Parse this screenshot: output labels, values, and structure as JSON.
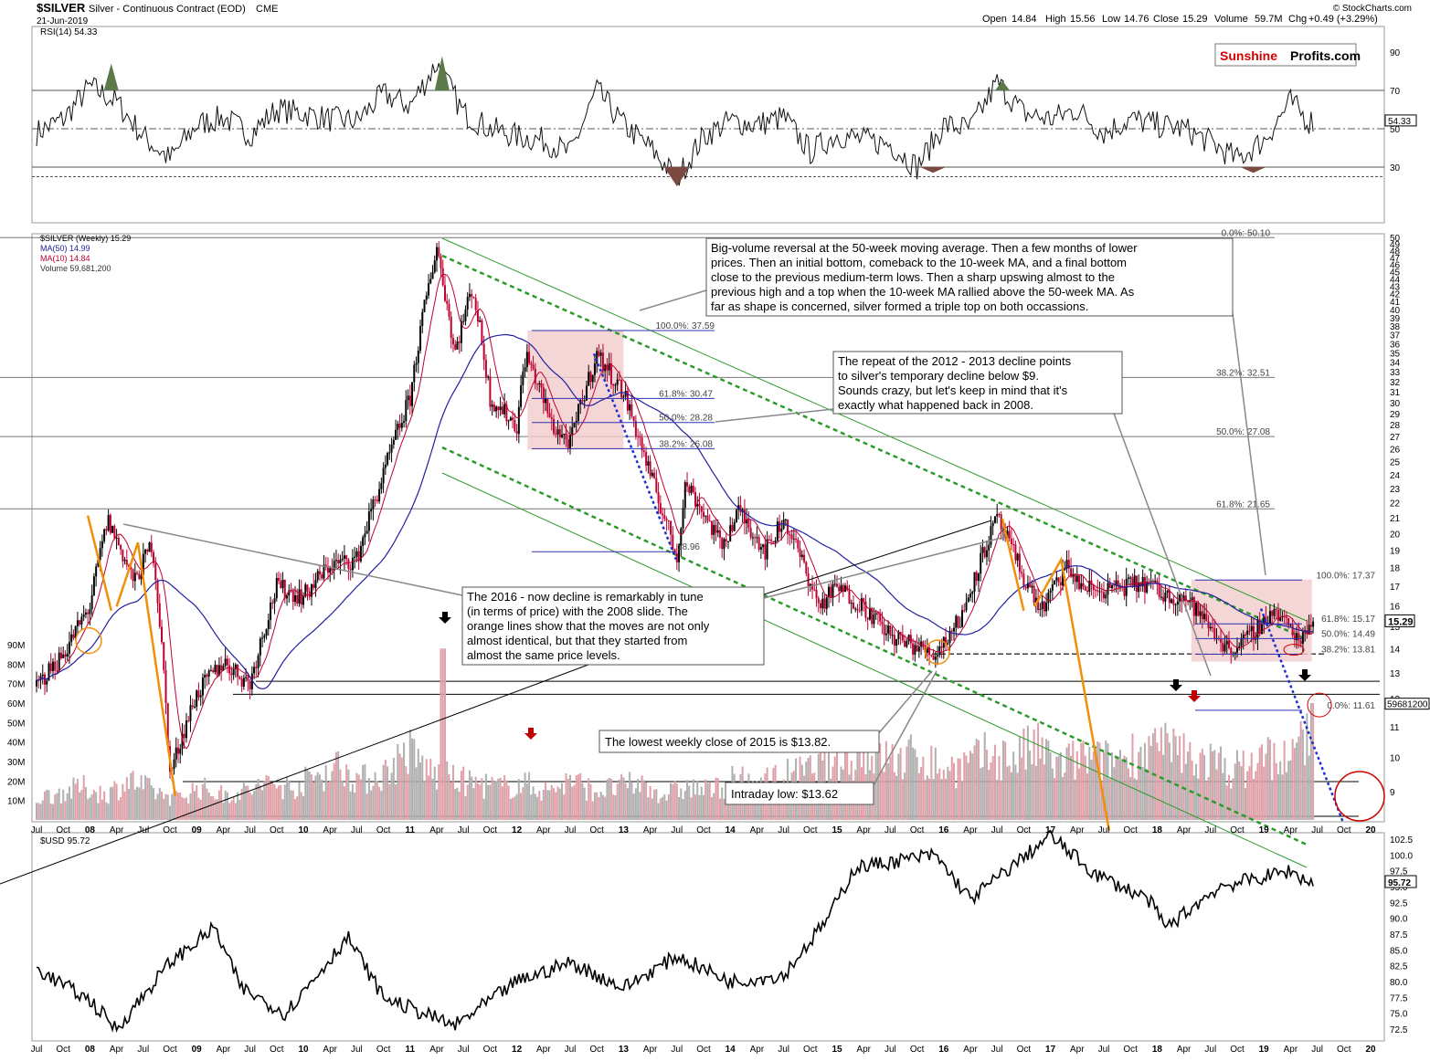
{
  "header": {
    "symbol": "$SILVER",
    "description": "Silver - Continuous Contract (EOD)",
    "exchange": "CME",
    "date": "21-Jun-2019",
    "open_label": "Open",
    "open": "14.84",
    "high_label": "High",
    "high": "15.56",
    "low_label": "Low",
    "low": "14.76",
    "close_label": "Close",
    "close": "15.29",
    "volume_label": "Volume",
    "volume": "59.7M",
    "chg_label": "Chg",
    "chg": "+0.49 (+3.29%)",
    "source": "© StockCharts.com",
    "brand_red": "Sunshine",
    "brand_black": "Profits.com",
    "brand_color": "#d60000"
  },
  "chart_data": [
    {
      "type": "line",
      "panel": "rsi",
      "title": "RSI(14) 54.33",
      "ylim": [
        10,
        100
      ],
      "yticks": [
        "90",
        "70",
        "50",
        "30"
      ],
      "reference_lines": [
        70,
        50,
        30,
        25
      ],
      "last_value": "54.33",
      "x": [
        "Jul 2007",
        "Oct 2007",
        "Jan 2008",
        "Apr 2008",
        "Jul 2008",
        "Oct 2008",
        "Jan 2009",
        "Apr 2009",
        "Jul 2009",
        "Oct 2009",
        "Jan 2010",
        "Apr 2010",
        "Jul 2010",
        "Oct 2010",
        "Jan 2011",
        "Apr 2011",
        "Jul 2011",
        "Oct 2011",
        "Jan 2012",
        "Apr 2012",
        "Jul 2012",
        "Oct 2012",
        "Jan 2013",
        "Apr 2013",
        "Jul 2013",
        "Oct 2013",
        "Jan 2014",
        "Apr 2014",
        "Jul 2014",
        "Oct 2014",
        "Jan 2015",
        "Apr 2015",
        "Jul 2015",
        "Oct 2015",
        "Jan 2016",
        "Apr 2016",
        "Jul 2016",
        "Oct 2016",
        "Jan 2017",
        "Apr 2017",
        "Jul 2017",
        "Oct 2017",
        "Jan 2018",
        "Apr 2018",
        "Jul 2018",
        "Oct 2018",
        "Jan 2019",
        "Apr 2019",
        "Jun 2019"
      ],
      "values": [
        48,
        55,
        72,
        64,
        46,
        34,
        52,
        56,
        47,
        60,
        58,
        55,
        54,
        68,
        62,
        84,
        58,
        50,
        46,
        44,
        37,
        70,
        52,
        40,
        24,
        46,
        54,
        52,
        56,
        38,
        47,
        44,
        42,
        30,
        52,
        50,
        74,
        58,
        55,
        60,
        48,
        55,
        52,
        50,
        43,
        34,
        44,
        64,
        54
      ]
    },
    {
      "type": "candlestick",
      "panel": "price",
      "title": "$SILVER (Weekly) 15.29",
      "legend": [
        "$SILVER (Weekly) 15.29",
        "MA(50) 14.99",
        "MA(10) 14.84",
        "Volume 59,681,200"
      ],
      "ylim": [
        8,
        50
      ],
      "yscale": "log",
      "yticks": [
        "9",
        "10",
        "11",
        "12",
        "13",
        "14",
        "15",
        "16",
        "17",
        "18",
        "19",
        "20",
        "21",
        "22",
        "23",
        "24",
        "25",
        "26",
        "27",
        "28",
        "29",
        "30",
        "31",
        "32",
        "33",
        "34",
        "35",
        "36",
        "37",
        "38",
        "39",
        "40",
        "41",
        "42",
        "43",
        "44",
        "45",
        "46",
        "47",
        "48",
        "49",
        "50"
      ],
      "last_close": "15.29",
      "x": [
        "Jul 2007",
        "Oct 2007",
        "Jan 2008",
        "Mar 2008",
        "Jun 2008",
        "Aug 2008",
        "Oct 2008",
        "Jan 2009",
        "Apr 2009",
        "Jul 2009",
        "Oct 2009",
        "Jan 2010",
        "Apr 2010",
        "Jul 2010",
        "Oct 2010",
        "Jan 2011",
        "Apr 2011",
        "Jun 2011",
        "Aug 2011",
        "Oct 2011",
        "Jan 2012",
        "Feb 2012",
        "May 2012",
        "Jul 2012",
        "Oct 2012",
        "Jan 2013",
        "Apr 2013",
        "Jul 2013",
        "Aug 2013",
        "Dec 2013",
        "Feb 2014",
        "May 2014",
        "Jul 2014",
        "Nov 2014",
        "Jan 2015",
        "Apr 2015",
        "Jul 2015",
        "Dec 2015",
        "Mar 2016",
        "Jul 2016",
        "Oct 2016",
        "Dec 2016",
        "Mar 2017",
        "Apr 2017",
        "Jun 2017",
        "Sep 2017",
        "Dec 2017",
        "Feb 2018",
        "Apr 2018",
        "Jul 2018",
        "Sep 2018",
        "Nov 2018",
        "Feb 2019",
        "Apr 2019",
        "May 2019",
        "Jun 2019"
      ],
      "values": [
        12.5,
        13.8,
        16.0,
        20.9,
        17.2,
        19.5,
        9.5,
        12.2,
        13.5,
        12.6,
        17.0,
        16.5,
        18.2,
        18.5,
        24.0,
        30.5,
        48.7,
        35.0,
        43.0,
        30.5,
        28.0,
        35.0,
        28.0,
        26.5,
        34.9,
        31.0,
        24.0,
        18.6,
        23.5,
        19.3,
        21.5,
        19.0,
        21.0,
        16.0,
        17.0,
        16.0,
        14.6,
        13.8,
        15.5,
        21.0,
        17.5,
        15.8,
        18.2,
        17.2,
        16.8,
        17.0,
        17.2,
        16.5,
        16.5,
        15.0,
        14.0,
        14.4,
        15.8,
        15.0,
        14.4,
        15.29
      ],
      "series": [
        {
          "name": "MA(50)",
          "value": "14.99",
          "color": "#2020a0"
        },
        {
          "name": "MA(10)",
          "value": "14.84",
          "color": "#c00030"
        }
      ],
      "fibonacci": [
        {
          "label": "0.0%: 50.10",
          "value": 50.1
        },
        {
          "label": "38.2%: 32.51",
          "value": 32.51
        },
        {
          "label": "50.0%: 27.08",
          "value": 27.08
        },
        {
          "label": "61.8%: 21.65",
          "value": 21.65
        },
        {
          "label": "100.0%: 37.59",
          "value": 37.59
        },
        {
          "label": "61.8%: 30.47",
          "value": 30.47
        },
        {
          "label": "50.0%: 28.28",
          "value": 28.28
        },
        {
          "label": "38.2%: 26.08",
          "value": 26.08
        },
        {
          "label": "18.96",
          "value": 18.96
        },
        {
          "label": "100.0%: 17.37",
          "value": 17.37
        },
        {
          "label": "61.8%: 15.17",
          "value": 15.17
        },
        {
          "label": "50.0%: 14.49",
          "value": 14.49
        },
        {
          "label": "38.2%: 13.81",
          "value": 13.81
        },
        {
          "label": "0.0%: 11.61",
          "value": 11.61
        }
      ],
      "horizontal_levels": [
        13.82,
        12.7,
        12.2
      ],
      "x_axis_labels": [
        "Jul",
        "Oct",
        "08",
        "Apr",
        "Jul",
        "Oct",
        "09",
        "Apr",
        "Jul",
        "Oct",
        "10",
        "Apr",
        "Jul",
        "Oct",
        "11",
        "Apr",
        "Jul",
        "Oct",
        "12",
        "Apr",
        "Jul",
        "Oct",
        "13",
        "Apr",
        "Jul",
        "Oct",
        "14",
        "Apr",
        "Jul",
        "Oct",
        "15",
        "Apr",
        "Jul",
        "Oct",
        "16",
        "Apr",
        "Jul",
        "Oct",
        "17",
        "Apr",
        "Jul",
        "Oct",
        "18",
        "Apr",
        "Jul",
        "Oct",
        "19",
        "Apr",
        "Jul",
        "Oct",
        "20"
      ]
    },
    {
      "type": "bar",
      "panel": "volume",
      "title": "Volume 59,681,200",
      "ylim": [
        0,
        90
      ],
      "yticks": [
        "90M",
        "80M",
        "70M",
        "60M",
        "50M",
        "40M",
        "30M",
        "20M",
        "10M"
      ],
      "last_value": "59681200",
      "values": [
        12,
        15,
        18,
        14,
        22,
        16,
        12,
        18,
        14,
        16,
        20,
        18,
        24,
        30,
        22,
        26,
        38,
        26,
        22,
        20,
        18,
        20,
        16,
        22,
        16,
        18,
        20,
        14,
        18,
        16,
        22,
        20,
        24,
        26,
        30,
        34,
        38,
        32,
        36,
        28,
        30,
        36,
        34,
        40,
        30,
        34,
        32,
        36,
        40,
        38,
        34,
        30,
        28,
        36,
        32,
        60
      ]
    },
    {
      "type": "line",
      "panel": "usd",
      "title": "$USD 95.72",
      "ylim": [
        72,
        104
      ],
      "yticks": [
        "102.5",
        "100.0",
        "97.5",
        "95.0",
        "92.5",
        "90.0",
        "87.5",
        "85.0",
        "82.5",
        "80.0",
        "77.5",
        "75.0",
        "72.5"
      ],
      "last_value": "95.72",
      "x": [
        "Jul 2007",
        "Jan 2008",
        "Apr 2008",
        "Oct 2008",
        "Mar 2009",
        "Jun 2009",
        "Nov 2009",
        "Jun 2010",
        "Oct 2010",
        "Jun 2011",
        "Jan 2012",
        "Jul 2012",
        "Jan 2013",
        "Jul 2013",
        "Jan 2014",
        "Jul 2014",
        "Dec 2014",
        "Mar 2015",
        "Dec 2015",
        "Apr 2016",
        "Jan 2017",
        "Jun 2017",
        "Dec 2017",
        "Feb 2018",
        "Aug 2018",
        "Jan 2019",
        "Apr 2019",
        "Jun 2019"
      ],
      "values": [
        82,
        77,
        72.5,
        83,
        88.5,
        79,
        75,
        87,
        77.5,
        73,
        80,
        83,
        79,
        84,
        80,
        81,
        90,
        98,
        100,
        93,
        103,
        97,
        93,
        88.5,
        95,
        96.5,
        97.5,
        95.7
      ]
    }
  ],
  "annotations": {
    "big_volume": "Big-volume reversal at the 50-week moving average. Then a few months of lower prices. Then an initial bottom, comeback to the 10-week MA, and a  final bottom close to the previous medium-term lows. Then a sharp upswing almost to the previous high and a top when the 10-week MA rallied above the 50-week MA. As far as shape is concerned, silver formed a triple top on both occassions.",
    "big_volume_lines": [
      "Big-volume reversal at the 50-week moving average. Then a few months of lower",
      "prices. Then an initial bottom, comeback to the 10-week MA, and a  final bottom",
      "close to the previous medium-term lows. Then a sharp upswing almost to the",
      "previous high and a top when the 10-week MA rallied above the 50-week MA. As",
      "far as shape is concerned, silver formed a triple top on both occassions."
    ],
    "repeat_lines": [
      "The repeat of the 2012 - 2013 decline points",
      "to silver's temporary decline below $9.",
      "Sounds crazy, but let's keep in mind that it's",
      "exactly what happened back in 2008."
    ],
    "tune_lines": [
      "The 2016 - now decline is remarkably in tune",
      "(in terms of price) with the 2008 slide. The",
      "orange lines show that the moves are not only",
      "almost identical, but that they started from",
      "almost the same price levels."
    ],
    "lowest_close": "The lowest weekly close of 2015 is $13.82.",
    "intraday_low": "Intraday low: $13.62"
  },
  "colors": {
    "up_candle": "#000000",
    "down_candle": "#c00030",
    "ma50": "#2020a0",
    "ma10": "#c00030",
    "channel": "#2a9a2a",
    "orange": "#f0900a",
    "highlight_box": "#f2cccc",
    "rsi_overbought_fill": "#5a7a4a",
    "rsi_oversold_fill": "#7a4a40",
    "volume_up": "#b0b0b0",
    "volume_down": "#e0a0a8"
  }
}
